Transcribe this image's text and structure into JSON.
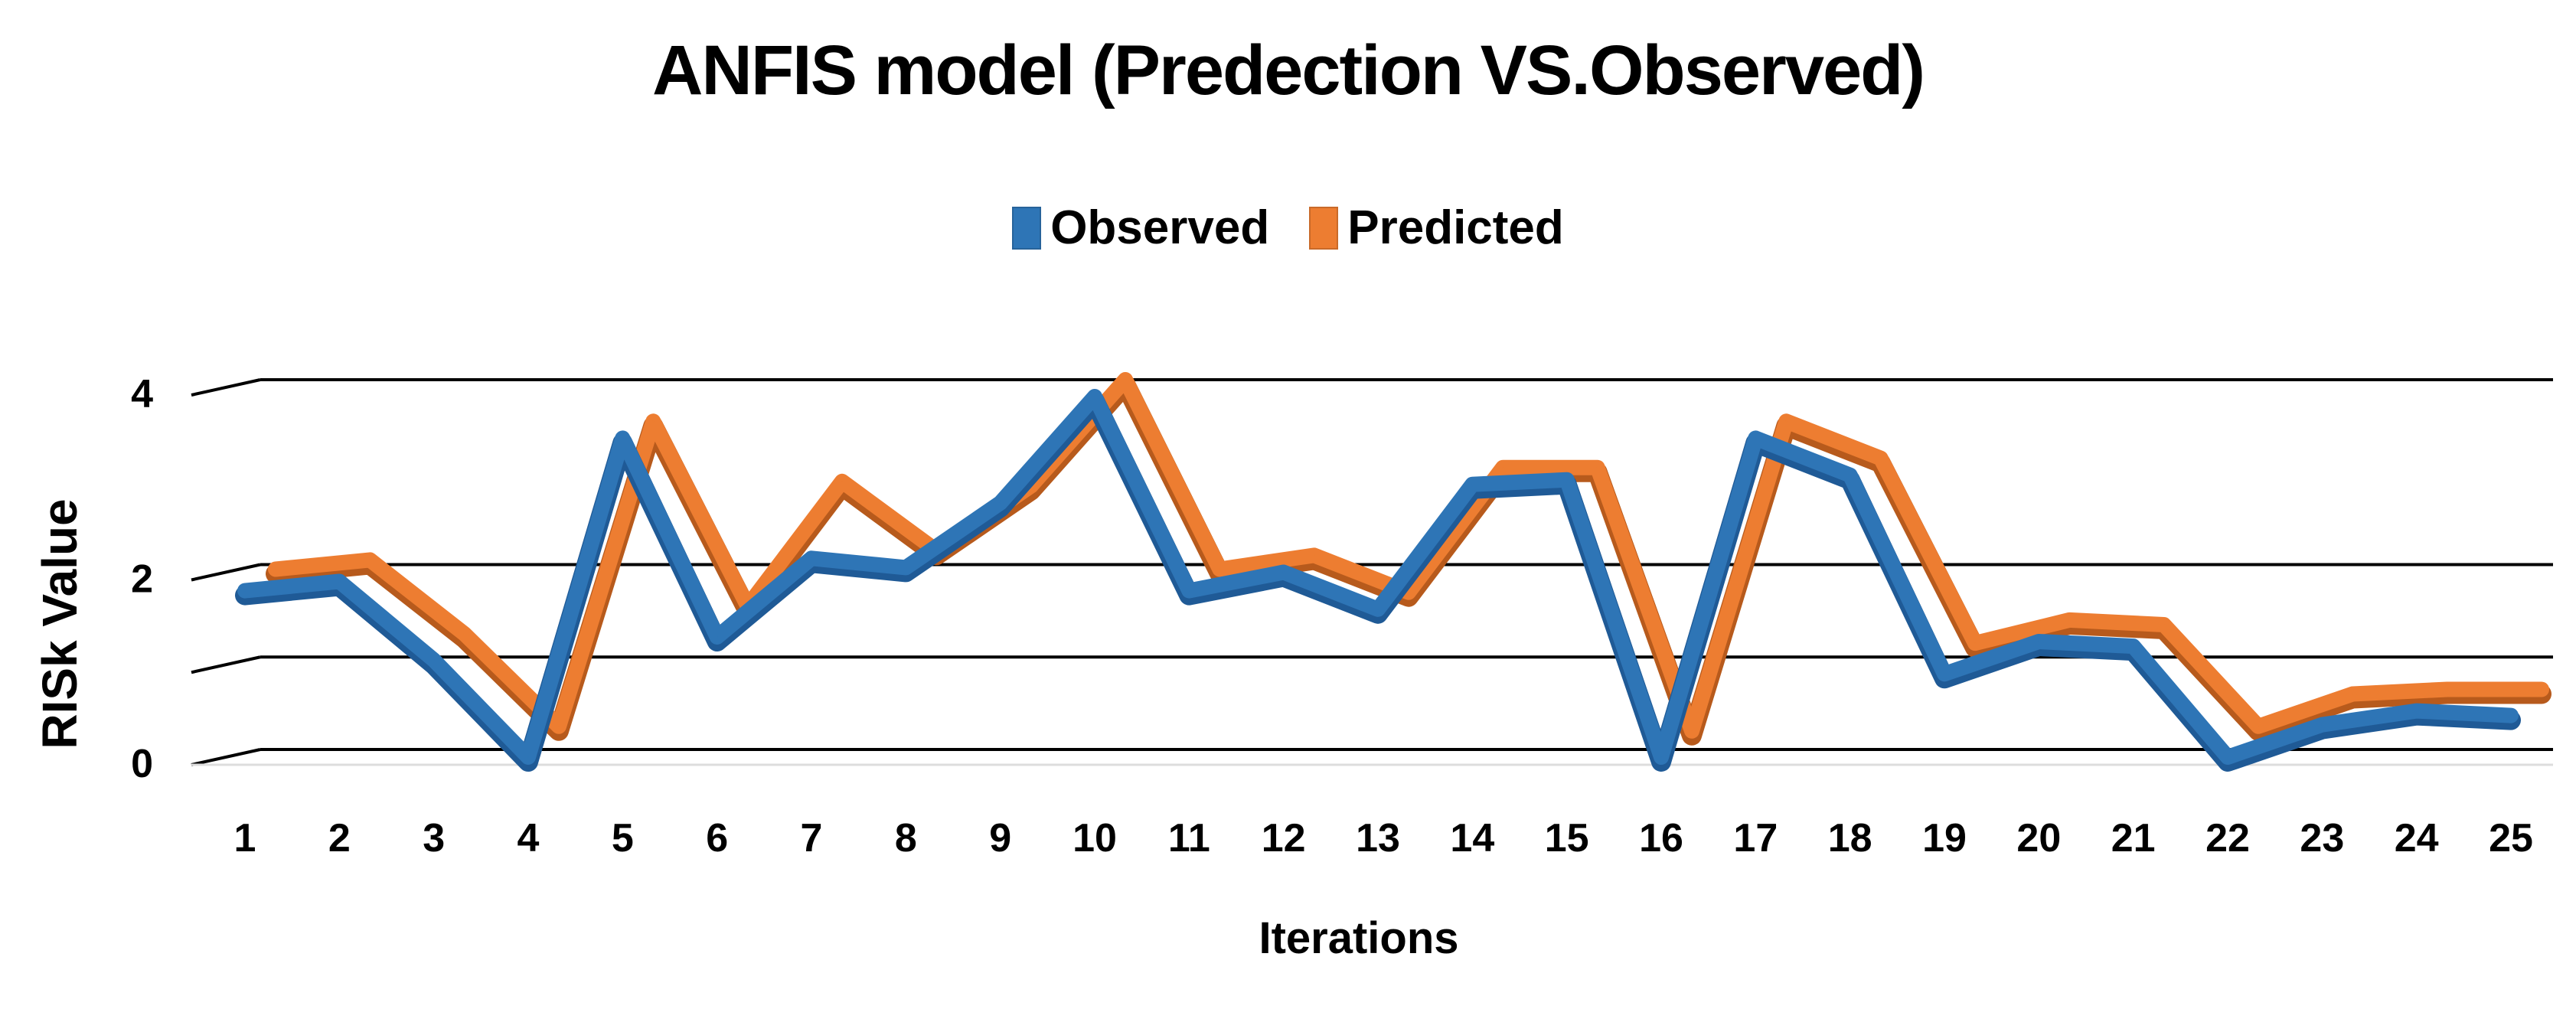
{
  "colors": {
    "observed": "#2e75b6",
    "predicted": "#ed7d31",
    "grid": "#000000",
    "observed_dark": "#1f5a96",
    "predicted_dark": "#b75a1c"
  },
  "chart_data": {
    "type": "line",
    "title": "ANFIS model (Predection VS.Observed)",
    "xlabel": "Iterations",
    "ylabel": "RISk Value",
    "ylim": [
      0,
      4
    ],
    "yticks": [
      "0",
      "2",
      "4"
    ],
    "categories": [
      "1",
      "2",
      "3",
      "4",
      "5",
      "6",
      "7",
      "8",
      "9",
      "10",
      "11",
      "12",
      "13",
      "14",
      "15",
      "16",
      "17",
      "18",
      "19",
      "20",
      "21",
      "22",
      "23",
      "24",
      "25"
    ],
    "legend_position": "top-center",
    "series": [
      {
        "name": "Observed",
        "values": [
          1.85,
          1.95,
          1.1,
          0.05,
          3.5,
          1.35,
          2.2,
          2.1,
          2.8,
          3.95,
          1.85,
          2.05,
          1.65,
          3.0,
          3.05,
          0.05,
          3.5,
          3.1,
          0.95,
          1.3,
          1.25,
          0.05,
          0.4,
          0.55,
          0.5
        ]
      },
      {
        "name": "Predicted",
        "values": [
          2.0,
          2.1,
          1.3,
          0.3,
          3.6,
          1.6,
          2.95,
          2.2,
          2.9,
          4.05,
          2.0,
          2.15,
          1.75,
          3.1,
          3.1,
          0.25,
          3.6,
          3.2,
          1.2,
          1.45,
          1.4,
          0.3,
          0.65,
          0.7,
          0.7
        ]
      }
    ]
  }
}
